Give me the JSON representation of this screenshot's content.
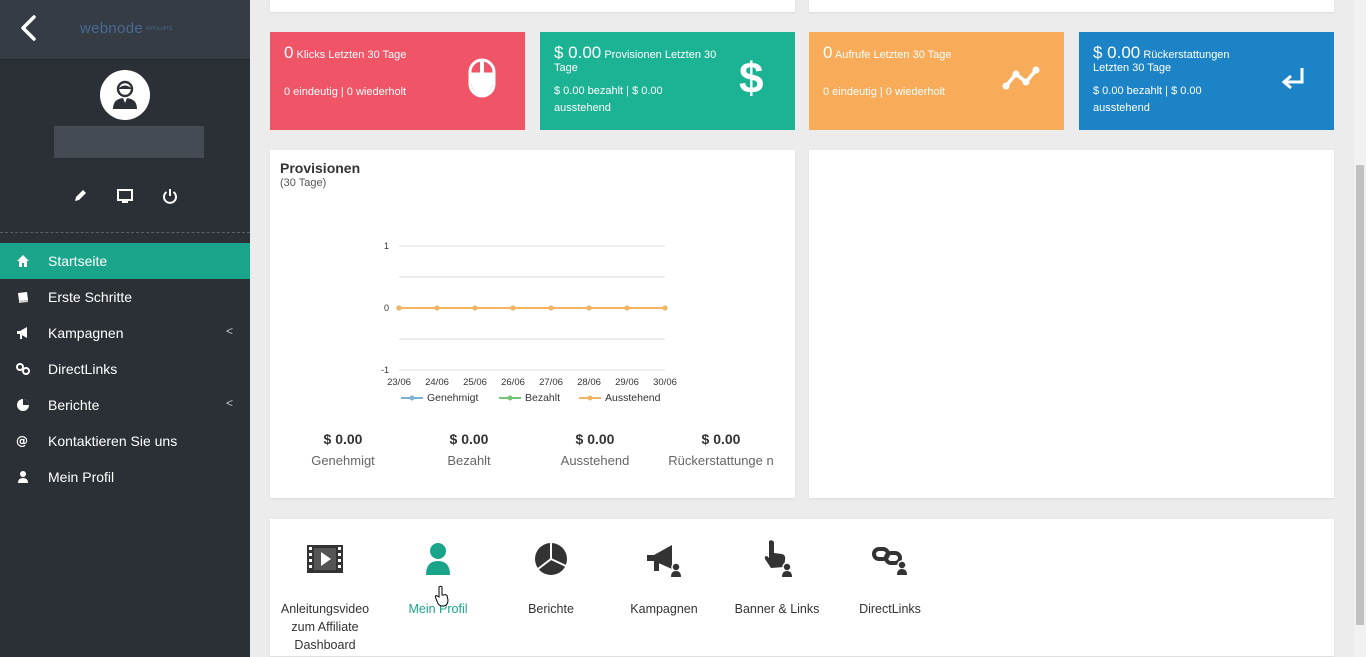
{
  "sidebar": {
    "logo": "webnode",
    "logo_sub": "AFFILIATE",
    "nav": [
      {
        "label": "Startseite",
        "icon": "home-icon",
        "active": true
      },
      {
        "label": "Erste Schritte",
        "icon": "book-icon"
      },
      {
        "label": "Kampagnen",
        "icon": "megaphone-icon",
        "chevron": "<"
      },
      {
        "label": "DirectLinks",
        "icon": "link-icon"
      },
      {
        "label": "Berichte",
        "icon": "pie-chart-icon",
        "chevron": "<"
      },
      {
        "label": "Kontaktieren Sie uns",
        "icon": "at-icon"
      },
      {
        "label": "Mein Profil",
        "icon": "user-icon"
      }
    ]
  },
  "tiles": [
    {
      "value": "0",
      "title": "Klicks Letzten 30 Tage",
      "sub": "0 eindeutig | 0 wiederholt",
      "color": "#ef5566",
      "icon": "mouse-icon"
    },
    {
      "value": "$ 0.00",
      "title": "Provisionen Letzten 30 Tage",
      "sub": "$ 0.00 bezahlt | $ 0.00 ausstehend",
      "color": "#1cb394",
      "icon": "dollar-icon"
    },
    {
      "value": "0",
      "title": "Aufrufe Letzten 30 Tage",
      "sub": "0 eindeutig | 0 wiederholt",
      "color": "#f8ac59",
      "icon": "trend-icon"
    },
    {
      "value": "$ 0.00",
      "title": "Rückerstattungen Letzten 30 Tage",
      "sub": "$ 0.00 bezahlt | $ 0.00 ausstehend",
      "color": "#1c84c6",
      "icon": "return-icon"
    }
  ],
  "provisionen": {
    "title": "Provisionen",
    "subtitle": "(30 Tage)",
    "summary": [
      {
        "value": "$ 0.00",
        "label": "Genehmigt"
      },
      {
        "value": "$ 0.00",
        "label": "Bezahlt"
      },
      {
        "value": "$ 0.00",
        "label": "Ausstehend"
      },
      {
        "value": "$ 0.00",
        "label": "Rückerstattunge n"
      }
    ]
  },
  "chart_data": {
    "type": "line",
    "x": [
      "23/06",
      "24/06",
      "25/06",
      "26/06",
      "27/06",
      "28/06",
      "29/06",
      "30/06"
    ],
    "y_ticks": [
      "1",
      "0",
      "-1"
    ],
    "ylim": [
      -1,
      1
    ],
    "series": [
      {
        "name": "Genehmigt",
        "color": "#7fb3d5",
        "values": [
          0,
          0,
          0,
          0,
          0,
          0,
          0,
          0
        ]
      },
      {
        "name": "Bezahlt",
        "color": "#74c476",
        "values": [
          0,
          0,
          0,
          0,
          0,
          0,
          0,
          0
        ]
      },
      {
        "name": "Ausstehend",
        "color": "#f5b461",
        "values": [
          0,
          0,
          0,
          0,
          0,
          0,
          0,
          0
        ]
      }
    ],
    "legend_position": "bottom",
    "grid": true
  },
  "shortcuts": [
    {
      "label": "Anleitungsvideo zum Affiliate Dashboard",
      "icon": "video-icon"
    },
    {
      "label": "Mein Profil",
      "icon": "user-icon",
      "active": true
    },
    {
      "label": "Berichte",
      "icon": "pie-chart-icon"
    },
    {
      "label": "Kampagnen",
      "icon": "megaphone-icon"
    },
    {
      "label": "Banner & Links",
      "icon": "pointer-icon"
    },
    {
      "label": "DirectLinks",
      "icon": "link-icon"
    }
  ]
}
